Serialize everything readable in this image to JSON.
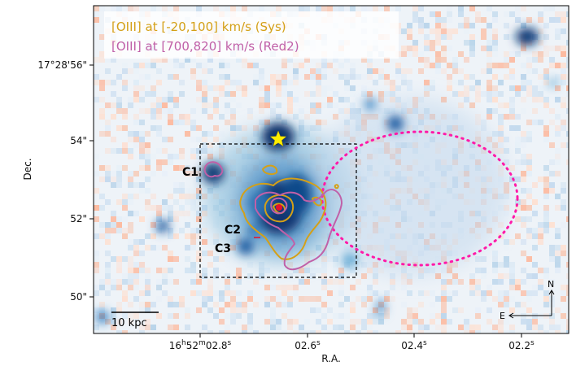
{
  "image": {
    "description_colormap": "diverging blue-white-red residual map",
    "colors": {
      "blue_dark": "#08306b",
      "blue_mid": "#6baed6",
      "blue_light": "#deebf7",
      "red_light": "#fcbba1",
      "red_mid": "#fb6a4a"
    }
  },
  "axes": {
    "xlabel": "R.A.",
    "ylabel": "Dec.",
    "x_ticks": [
      {
        "main": "16",
        "sup1": "h",
        "mid": "52",
        "sup2": "m",
        "tail": "02.8",
        "sup3": "s"
      },
      {
        "main": "02.6",
        "sup3": "s"
      },
      {
        "main": "02.4",
        "sup3": "s"
      },
      {
        "main": "02.2",
        "sup3": "s"
      }
    ],
    "y_ticks": [
      "17°28'56\"",
      "54\"",
      "52\"",
      "50\""
    ]
  },
  "legend": {
    "entries": [
      {
        "text": "[OIII] at [-20,100] km/s (Sys)",
        "color": "#d4a017"
      },
      {
        "text": "[OIII] at [700,820] km/s (Red2)",
        "color": "#c060a8"
      }
    ]
  },
  "annotations": {
    "clumps": [
      "C1",
      "C2",
      "C3"
    ],
    "scale_bar": "10 kpc",
    "compass": {
      "north": "N",
      "east": "E"
    },
    "markers": {
      "star_color": "#ffee00",
      "center_color": "#e8102a",
      "ellipse_color": "#ff1aa8",
      "box_color": "#000000"
    }
  }
}
